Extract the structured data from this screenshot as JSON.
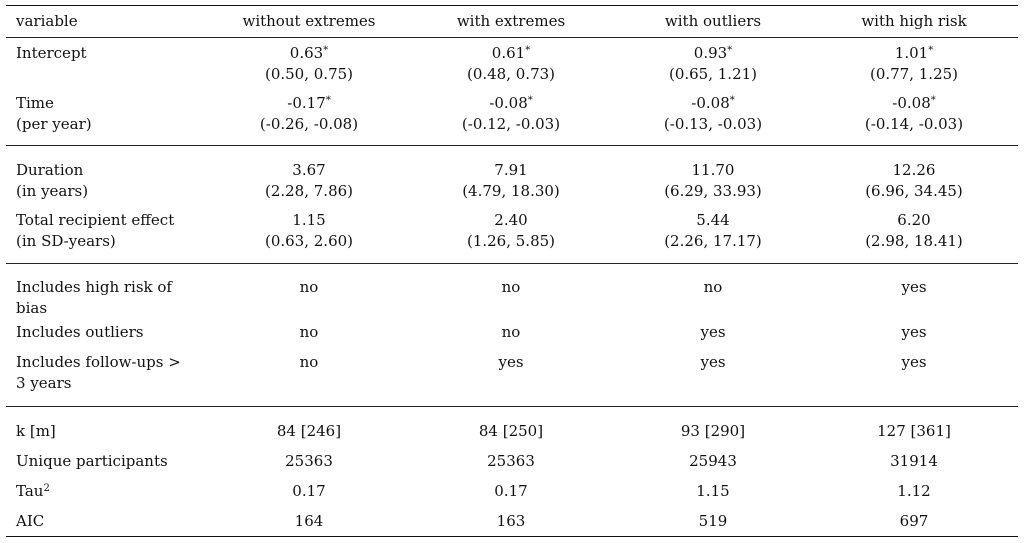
{
  "header": {
    "variable": "variable",
    "cols": [
      "without extremes",
      "with extremes",
      "with outliers",
      "with high risk"
    ]
  },
  "rows": [
    {
      "label1": "Intercept",
      "label2": "",
      "cells": [
        [
          "0.63*",
          "(0.50, 0.75)"
        ],
        [
          "0.61*",
          "(0.48, 0.73)"
        ],
        [
          "0.93*",
          "(0.65, 1.21)"
        ],
        [
          "1.01*",
          "(0.77, 1.25)"
        ]
      ]
    },
    {
      "label1": "Time",
      "label2": "(per year)",
      "cells": [
        [
          "-0.17*",
          "(-0.26, -0.08)"
        ],
        [
          "-0.08*",
          "(-0.12, -0.03)"
        ],
        [
          "-0.08*",
          "(-0.13, -0.03)"
        ],
        [
          "-0.08*",
          "(-0.14, -0.03)"
        ]
      ]
    },
    {
      "label1": "Duration",
      "label2": "(in years)",
      "cells": [
        [
          "3.67",
          "(2.28, 7.86)"
        ],
        [
          "7.91",
          "(4.79, 18.30)"
        ],
        [
          "11.70",
          "(6.29, 33.93)"
        ],
        [
          "12.26",
          "(6.96, 34.45)"
        ]
      ]
    },
    {
      "label1": "Total recipient effect",
      "label2": "(in SD-years)",
      "cells": [
        [
          "1.15",
          "(0.63, 2.60)"
        ],
        [
          "2.40",
          "(1.26, 5.85)"
        ],
        [
          "5.44",
          "(2.26, 17.17)"
        ],
        [
          "6.20",
          "(2.98, 18.41)"
        ]
      ]
    },
    {
      "label1": "Includes high risk of",
      "label2": "bias",
      "cells": [
        [
          "no",
          ""
        ],
        [
          "no",
          ""
        ],
        [
          "no",
          ""
        ],
        [
          "yes",
          ""
        ]
      ]
    },
    {
      "label1": "Includes outliers",
      "label2": "",
      "cells": [
        [
          "no",
          ""
        ],
        [
          "no",
          ""
        ],
        [
          "yes",
          ""
        ],
        [
          "yes",
          ""
        ]
      ]
    },
    {
      "label1": "Includes follow-ups >",
      "label2": "3 years",
      "cells": [
        [
          "no",
          ""
        ],
        [
          "yes",
          ""
        ],
        [
          "yes",
          ""
        ],
        [
          "yes",
          ""
        ]
      ]
    },
    {
      "label1": "k [m]",
      "label2": "",
      "cells": [
        [
          "84 [246]",
          ""
        ],
        [
          "84 [250]",
          ""
        ],
        [
          "93 [290]",
          ""
        ],
        [
          "127 [361]",
          ""
        ]
      ]
    },
    {
      "label1": "Unique participants",
      "label2": "",
      "cells": [
        [
          "25363",
          ""
        ],
        [
          "25363",
          ""
        ],
        [
          "25943",
          ""
        ],
        [
          "31914",
          ""
        ]
      ]
    },
    {
      "label1": "Tau2",
      "label2": "",
      "cells": [
        [
          "0.17",
          ""
        ],
        [
          "0.17",
          ""
        ],
        [
          "1.15",
          ""
        ],
        [
          "1.12",
          ""
        ]
      ]
    },
    {
      "label1": "AIC",
      "label2": "",
      "cells": [
        [
          "164",
          ""
        ],
        [
          "163",
          ""
        ],
        [
          "519",
          ""
        ],
        [
          "697",
          ""
        ]
      ]
    }
  ]
}
